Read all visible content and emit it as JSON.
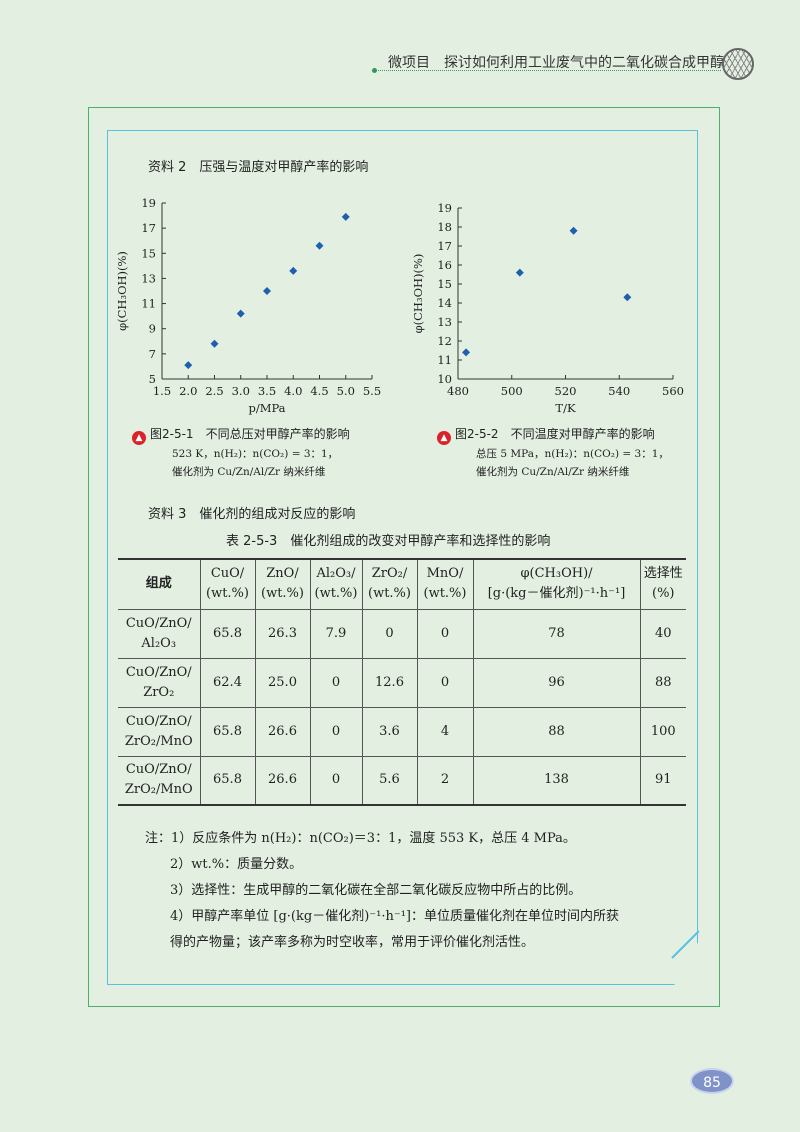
{
  "header": {
    "title": "微项目　探讨如何利用工业废气中的二氧化碳合成甲醇"
  },
  "section2": {
    "title": "资料 2　压强与温度对甲醇产率的影响"
  },
  "chart_data": [
    {
      "type": "scatter",
      "xlabel": "p/MPa",
      "ylabel": "φ(CH₃OH)(%)",
      "xlim": [
        1.5,
        5.5
      ],
      "ylim": [
        5,
        19
      ],
      "xticks": [
        "1.5",
        "2.0",
        "2.5",
        "3.0",
        "3.5",
        "4.0",
        "4.5",
        "5.0",
        "5.5"
      ],
      "yticks": [
        "5",
        "7",
        "9",
        "11",
        "13",
        "15",
        "17",
        "19"
      ],
      "x": [
        2.0,
        2.5,
        3.0,
        3.5,
        4.0,
        4.5,
        5.0
      ],
      "y": [
        6.1,
        7.8,
        10.2,
        12.0,
        13.6,
        15.6,
        17.9
      ],
      "marker_color": "#1f5fb0",
      "caption": "图2-5-1　不同总压对甲醇产率的影响",
      "note1": "523 K，n(H₂)：n(CO₂) = 3：1，",
      "note2": "催化剂为 Cu/Zn/Al/Zr 纳米纤维"
    },
    {
      "type": "scatter",
      "xlabel": "T/K",
      "ylabel": "φ(CH₃OH)(%)",
      "xlim": [
        480,
        560
      ],
      "ylim": [
        10,
        19
      ],
      "xticks": [
        "480",
        "500",
        "520",
        "540",
        "560"
      ],
      "yticks": [
        "10",
        "11",
        "12",
        "13",
        "14",
        "15",
        "16",
        "17",
        "18",
        "19"
      ],
      "x": [
        483,
        503,
        523,
        543
      ],
      "y": [
        11.4,
        15.6,
        17.8,
        14.3
      ],
      "marker_color": "#1f5fb0",
      "caption": "图2-5-2　不同温度对甲醇产率的影响",
      "note1": "总压 5 MPa，n(H₂)：n(CO₂) = 3：1，",
      "note2": "催化剂为 Cu/Zn/Al/Zr 纳米纤维"
    }
  ],
  "section3": {
    "title": "资料 3　催化剂的组成对反应的影响",
    "table_title": "表 2-5-3　催化剂组成的改变对甲醇产率和选择性的影响"
  },
  "table": {
    "headers": [
      [
        "组成"
      ],
      [
        "CuO/",
        "(wt.%)"
      ],
      [
        "ZnO/",
        "(wt.%)"
      ],
      [
        "Al₂O₃/",
        "(wt.%)"
      ],
      [
        "ZrO₂/",
        "(wt.%)"
      ],
      [
        "MnO/",
        "(wt.%)"
      ],
      [
        "φ(CH₃OH)/",
        "[g·(kg－催化剂)⁻¹·h⁻¹]"
      ],
      [
        "选择性",
        "(%)"
      ]
    ],
    "rows": [
      [
        [
          "CuO/ZnO/",
          "Al₂O₃"
        ],
        "65.8",
        "26.3",
        "7.9",
        "0",
        "0",
        "78",
        "40"
      ],
      [
        [
          "CuO/ZnO/",
          "ZrO₂"
        ],
        "62.4",
        "25.0",
        "0",
        "12.6",
        "0",
        "96",
        "88"
      ],
      [
        [
          "CuO/ZnO/",
          "ZrO₂/MnO"
        ],
        "65.8",
        "26.6",
        "0",
        "3.6",
        "4",
        "88",
        "100"
      ],
      [
        [
          "CuO/ZnO/",
          "ZrO₂/MnO"
        ],
        "65.8",
        "26.6",
        "0",
        "5.6",
        "2",
        "138",
        "91"
      ]
    ]
  },
  "notes": [
    "注：1）反应条件为 n(H₂)：n(CO₂)＝3：1，温度 553 K，总压 4 MPa。",
    "2）wt.%：质量分数。",
    "3）选择性：生成甲醇的二氧化碳在全部二氧化碳反应物中所占的比例。",
    "4）甲醇产率单位 [g·(kg－催化剂)⁻¹·h⁻¹]：单位质量催化剂在单位时间内所获",
    "得的产物量；该产率多称为时空收率，常用于评价催化剂活性。"
  ],
  "page_number": "85",
  "icons": {
    "caption": "red-triangle-badge-icon",
    "header": "fullerene-ball-icon"
  }
}
